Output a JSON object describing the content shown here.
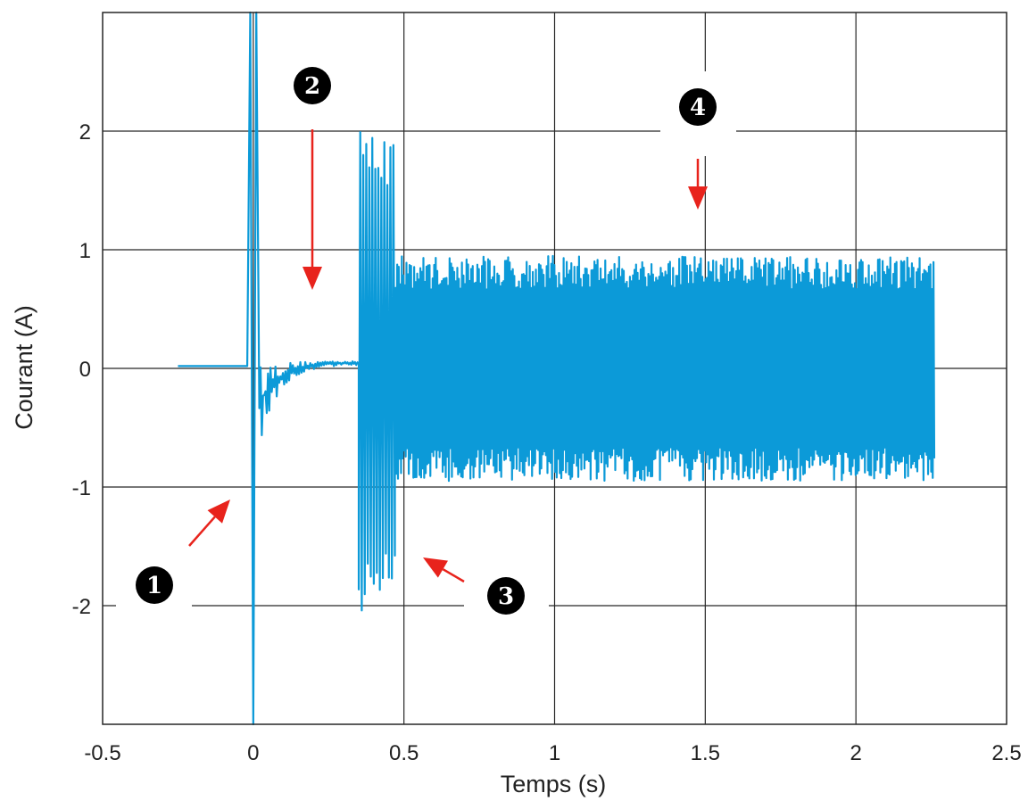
{
  "chart_data": {
    "type": "line",
    "xlabel": "Temps (s)",
    "ylabel": "Courant (A)",
    "xlim": [
      -0.5,
      2.5
    ],
    "ylim": [
      -3,
      3
    ],
    "grid": true,
    "x_ticks": [
      -0.5,
      0,
      0.5,
      1,
      1.5,
      2,
      2.5
    ],
    "x_tick_labels": [
      "-0.5",
      "0",
      "0.5",
      "1",
      "1.5",
      "2",
      "2.5"
    ],
    "y_ticks": [
      -2,
      -1,
      0,
      1,
      2
    ],
    "y_tick_labels": [
      "-2",
      "-1",
      "0",
      "1",
      "2"
    ],
    "series": [
      {
        "color": "#0c9ad8",
        "phases": [
          {
            "x_start": -0.25,
            "x_end": -0.02,
            "level": 0.02
          },
          {
            "x_start": -0.01,
            "x_end": 0.01,
            "min": -3,
            "max": 3
          },
          {
            "x_start": 0.02,
            "x_end": 0.35,
            "start_level": -0.3,
            "end_level": 0.05
          },
          {
            "x_start": 0.35,
            "x_end": 0.47,
            "min": -2.05,
            "max": 2.05
          },
          {
            "x_start": 0.47,
            "x_end": 2.26,
            "min": -0.95,
            "max": 0.95
          }
        ]
      }
    ],
    "annotations": [
      {
        "label": "1",
        "x": -0.03,
        "y": -1.1,
        "arrow_color": "#e8231c"
      },
      {
        "label": "2",
        "x": 0.19,
        "y": -0.1,
        "arrow_color": "#e8231c"
      },
      {
        "label": "3",
        "x": 0.55,
        "y": -1.6,
        "arrow_color": "#e8231c"
      },
      {
        "label": "4",
        "x": 1.48,
        "y": 1.3,
        "arrow_color": "#e8231c"
      }
    ]
  }
}
